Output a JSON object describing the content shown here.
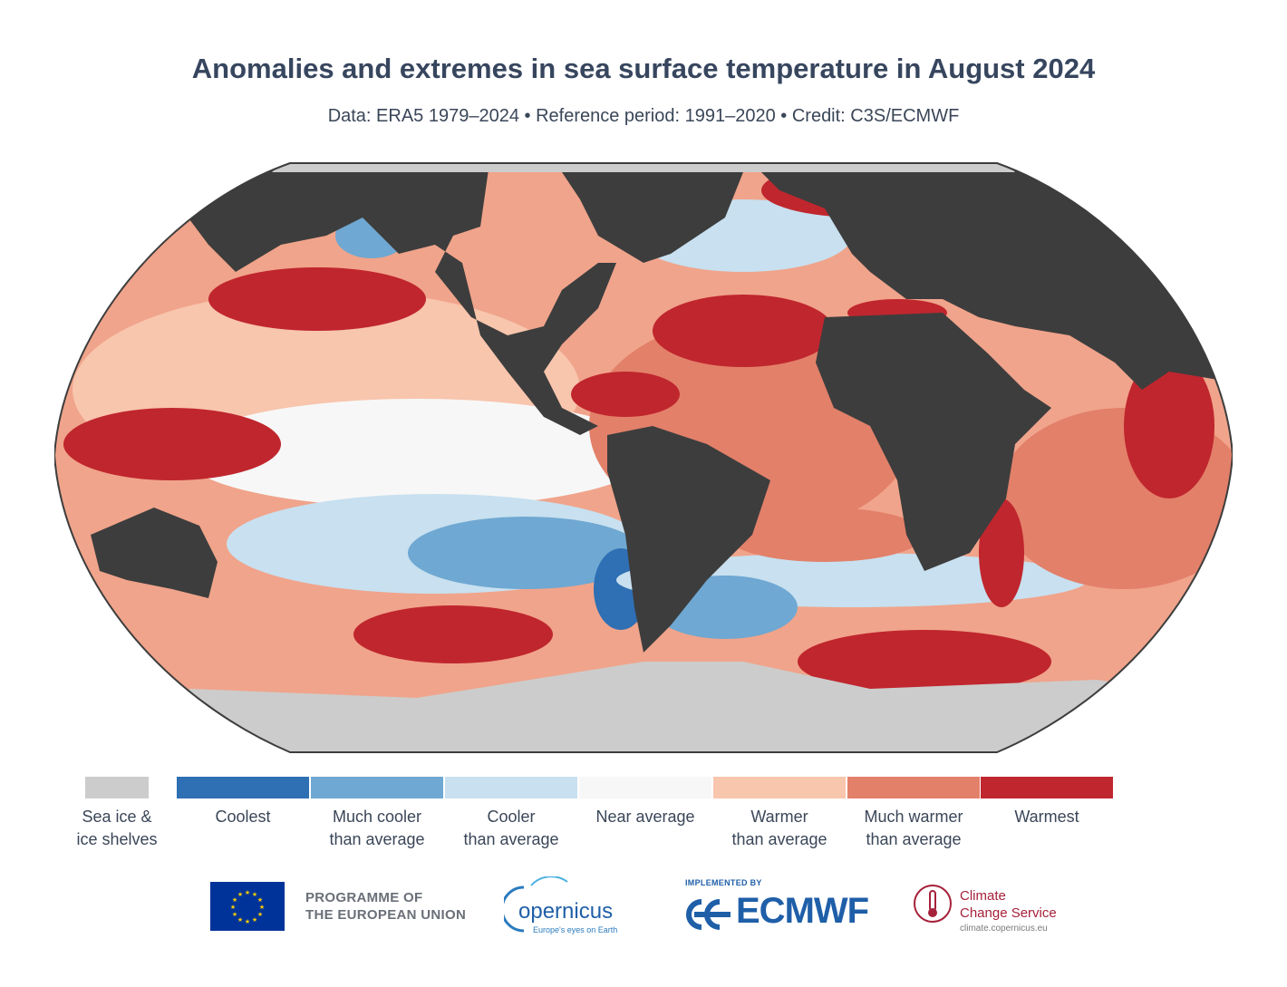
{
  "header": {
    "title": "Anomalies and extremes in sea surface temperature in August 2024",
    "subtitle": "Data: ERA5 1979–2024 • Reference period: 1991–2020 • Credit: C3S/ECMWF"
  },
  "map": {
    "projection": "Robinson",
    "colors": {
      "land": "#3d3d3d",
      "sea_ice": "#cccccc",
      "coolest": "#2f6fb3",
      "much_cooler": "#6fa8d2",
      "cooler": "#c8e0ef",
      "near_average": "#f7f7f7",
      "warmer": "#f8c5ad",
      "much_warmer": "#e3806a",
      "warmest": "#c0262e"
    }
  },
  "legend": {
    "items": [
      {
        "label_line1": "Sea ice &",
        "label_line2": "ice shelves",
        "color": "#cccccc"
      },
      {
        "label_line1": "Coolest",
        "label_line2": "",
        "color": "#2f6fb3"
      },
      {
        "label_line1": "Much cooler",
        "label_line2": "than average",
        "color": "#6fa8d2"
      },
      {
        "label_line1": "Cooler",
        "label_line2": "than average",
        "color": "#c8e0ef"
      },
      {
        "label_line1": "Near average",
        "label_line2": "",
        "color": "#f7f7f7"
      },
      {
        "label_line1": "Warmer",
        "label_line2": "than average",
        "color": "#f8c5ad"
      },
      {
        "label_line1": "Much warmer",
        "label_line2": "than average",
        "color": "#e3806a"
      },
      {
        "label_line1": "Warmest",
        "label_line2": "",
        "color": "#c0262e"
      }
    ]
  },
  "logos": {
    "eu_line1": "PROGRAMME OF",
    "eu_line2": "THE EUROPEAN UNION",
    "copernicus_word": "opernicus",
    "copernicus_tagline": "Europe's eyes on Earth",
    "ecmwf_implemented": "IMPLEMENTED BY",
    "ecmwf_word": "ECMWF",
    "c3s_line1": "Climate",
    "c3s_line2": "Change Service",
    "c3s_url": "climate.copernicus.eu"
  }
}
